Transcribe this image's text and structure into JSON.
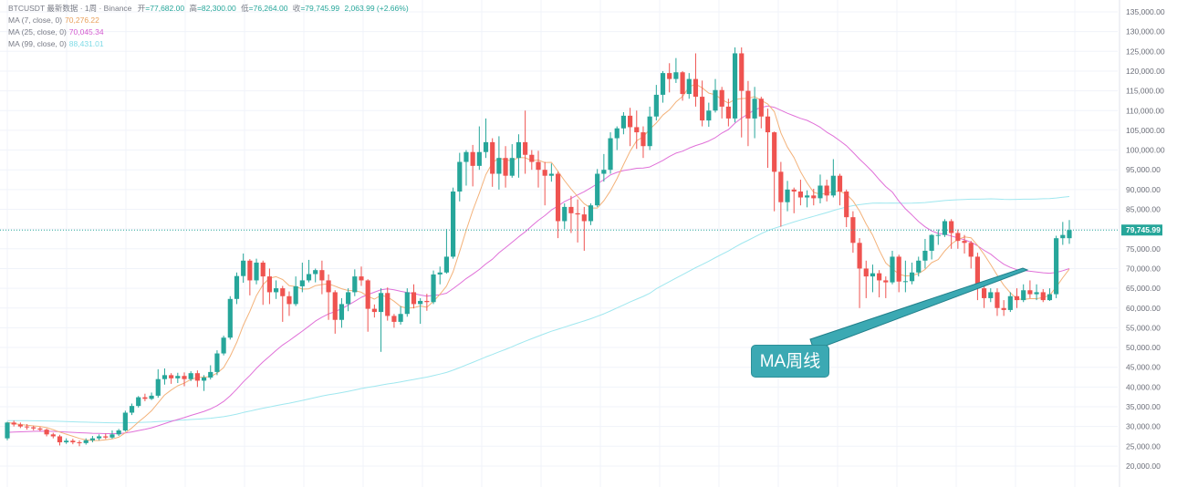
{
  "legend": {
    "header_prefix": "BTCUSDT 最新数据 · 1周 · Binance",
    "open_label": "开",
    "open_value": "=77,682.00",
    "high_label": "高",
    "high_value": "=82,300.00",
    "low_label": "低",
    "low_value": "=76,264.00",
    "close_label": "收",
    "close_value": "=79,745.99",
    "change_value": "2,063.99 (+2.66%)",
    "ma7_label": "MA (7, close, 0)",
    "ma7_value": "70,276.22",
    "ma25_label": "MA (25, close, 0)",
    "ma25_value": "70,045.34",
    "ma99_label": "MA (99, close, 0)",
    "ma99_value": "88,431.01"
  },
  "last_price_tag": "79,745.99",
  "annotation": {
    "text": "MA周线"
  },
  "colors": {
    "up": "#26a69a",
    "down": "#ef5350",
    "ma7": "#f3b27a",
    "ma25": "#e070d8",
    "ma99": "#9fe7ef",
    "callout": "#3ba9b3",
    "callout_line": "#1f7f8a"
  },
  "chart_data": {
    "type": "candlestick",
    "yticks": [
      "135,000.00",
      "130,000.00",
      "125,000.00",
      "120,000.00",
      "115,000.00",
      "110,000.00",
      "105,000.00",
      "100,000.00",
      "95,000.00",
      "90,000.00",
      "85,000.00",
      "80,000.00",
      "75,000.00",
      "70,000.00",
      "65,000.00",
      "60,000.00",
      "55,000.00",
      "50,000.00",
      "45,000.00",
      "40,000.00",
      "35,000.00",
      "30,000.00",
      "25,000.00",
      "20,000.00"
    ],
    "ylim": [
      17500,
      136000
    ],
    "last_close": 79745.99,
    "candles": [
      [
        27000,
        31000,
        26500,
        31200
      ],
      [
        31000,
        30500,
        30000,
        31500
      ],
      [
        30500,
        30000,
        29600,
        31000
      ],
      [
        30000,
        29800,
        29200,
        30600
      ],
      [
        29800,
        29500,
        29000,
        30200
      ],
      [
        29500,
        29200,
        28800,
        29900
      ],
      [
        29200,
        28000,
        27500,
        29500
      ],
      [
        28000,
        27500,
        27000,
        28400
      ],
      [
        27500,
        26000,
        25200,
        27900
      ],
      [
        26000,
        26400,
        25600,
        27000
      ],
      [
        26400,
        26000,
        25500,
        26900
      ],
      [
        26000,
        25800,
        25000,
        26500
      ],
      [
        25800,
        26500,
        25400,
        27000
      ],
      [
        26500,
        27000,
        26000,
        27600
      ],
      [
        27000,
        27500,
        26500,
        28000
      ],
      [
        27500,
        27200,
        26800,
        28200
      ],
      [
        27200,
        28000,
        26900,
        29000
      ],
      [
        28000,
        29000,
        27600,
        29400
      ],
      [
        29000,
        33500,
        28700,
        34000
      ],
      [
        33500,
        35200,
        32900,
        35800
      ],
      [
        35200,
        37400,
        34800,
        37700
      ],
      [
        37400,
        37000,
        36400,
        38300
      ],
      [
        37000,
        37800,
        36700,
        38600
      ],
      [
        37800,
        42000,
        37300,
        44500
      ],
      [
        42000,
        43000,
        40600,
        44700
      ],
      [
        43000,
        42200,
        40800,
        43500
      ],
      [
        42200,
        42800,
        41000,
        43600
      ],
      [
        42800,
        42000,
        40200,
        43700
      ],
      [
        42000,
        43500,
        41500,
        44000
      ],
      [
        43500,
        41600,
        40000,
        44200
      ],
      [
        41600,
        42400,
        39000,
        43000
      ],
      [
        42400,
        43800,
        41900,
        45500
      ],
      [
        43800,
        48500,
        43000,
        49300
      ],
      [
        48500,
        52500,
        48000,
        53000
      ],
      [
        52500,
        62300,
        52000,
        63000
      ],
      [
        62300,
        68100,
        61000,
        69000
      ],
      [
        68100,
        72000,
        66400,
        73800
      ],
      [
        72000,
        67000,
        63200,
        72400
      ],
      [
        67000,
        71500,
        66000,
        72500
      ],
      [
        71500,
        68000,
        60800,
        72000
      ],
      [
        68000,
        64000,
        61000,
        70000
      ],
      [
        64000,
        65000,
        62300,
        67000
      ],
      [
        65000,
        63000,
        56500,
        65600
      ],
      [
        63000,
        61000,
        58000,
        64200
      ],
      [
        61000,
        65500,
        60500,
        68000
      ],
      [
        65500,
        67000,
        64000,
        71500
      ],
      [
        67000,
        68600,
        66500,
        72200
      ],
      [
        68600,
        69600,
        66500,
        70000
      ],
      [
        69600,
        67000,
        63500,
        72000
      ],
      [
        67000,
        64000,
        57000,
        68500
      ],
      [
        64000,
        57000,
        53500,
        64500
      ],
      [
        57000,
        61000,
        55000,
        62500
      ],
      [
        61000,
        64000,
        59200,
        65000
      ],
      [
        64000,
        68000,
        63000,
        69800
      ],
      [
        68000,
        67000,
        65600,
        70500
      ],
      [
        67000,
        59800,
        54000,
        67300
      ],
      [
        59800,
        59000,
        57600,
        60900
      ],
      [
        59000,
        63800,
        48900,
        65000
      ],
      [
        63800,
        58000,
        56800,
        65200
      ],
      [
        58000,
        56500,
        55000,
        58500
      ],
      [
        56500,
        58500,
        55800,
        60500
      ],
      [
        58500,
        64000,
        57800,
        65000
      ],
      [
        64000,
        61000,
        59900,
        66000
      ],
      [
        61000,
        61800,
        56000,
        62500
      ],
      [
        61800,
        61500,
        59300,
        63600
      ],
      [
        61500,
        68500,
        61000,
        69500
      ],
      [
        68500,
        69000,
        66000,
        70500
      ],
      [
        69000,
        73000,
        68700,
        80000
      ],
      [
        73000,
        89500,
        72500,
        90500
      ],
      [
        89500,
        97000,
        87000,
        99300
      ],
      [
        97000,
        99500,
        91000,
        100000
      ],
      [
        99500,
        96000,
        90800,
        101300
      ],
      [
        96000,
        99500,
        95000,
        106000
      ],
      [
        99500,
        102000,
        98000,
        108000
      ],
      [
        102000,
        94000,
        90700,
        103000
      ],
      [
        94000,
        98000,
        90000,
        103500
      ],
      [
        98000,
        93500,
        90500,
        101000
      ],
      [
        93500,
        98000,
        93000,
        101500
      ],
      [
        98000,
        102000,
        93000,
        104000
      ],
      [
        102000,
        98800,
        94000,
        110000
      ],
      [
        98800,
        97000,
        95000,
        100000
      ],
      [
        97000,
        95000,
        90500,
        99800
      ],
      [
        95000,
        93500,
        86000,
        97000
      ],
      [
        93500,
        94000,
        92000,
        96600
      ],
      [
        94000,
        82000,
        77700,
        94500
      ],
      [
        82000,
        85600,
        80000,
        86500
      ],
      [
        85600,
        84000,
        79000,
        88400
      ],
      [
        84000,
        83700,
        76600,
        87500
      ],
      [
        83700,
        82000,
        74500,
        85600
      ],
      [
        82000,
        86000,
        81000,
        86500
      ],
      [
        86000,
        94000,
        85600,
        95200
      ],
      [
        94000,
        95000,
        92000,
        99000
      ],
      [
        95000,
        103000,
        94000,
        104500
      ],
      [
        103000,
        105500,
        100000,
        106000
      ],
      [
        105500,
        108700,
        104000,
        109600
      ],
      [
        108700,
        105800,
        101000,
        110700
      ],
      [
        105800,
        104500,
        100300,
        110000
      ],
      [
        104500,
        101000,
        98000,
        106000
      ],
      [
        101000,
        108500,
        100000,
        111000
      ],
      [
        108500,
        114000,
        107500,
        116500
      ],
      [
        114000,
        119500,
        112000,
        120000
      ],
      [
        119500,
        118000,
        114600,
        122000
      ],
      [
        118000,
        119700,
        117000,
        123300
      ],
      [
        119700,
        114200,
        112500,
        120000
      ],
      [
        114200,
        118000,
        113000,
        119500
      ],
      [
        118000,
        113500,
        111000,
        124500
      ],
      [
        113500,
        107500,
        106000,
        117600
      ],
      [
        107500,
        110000,
        105900,
        112000
      ],
      [
        110000,
        115200,
        109500,
        118000
      ],
      [
        115200,
        111000,
        108000,
        116000
      ],
      [
        111000,
        108000,
        106000,
        113000
      ],
      [
        108000,
        124500,
        107000,
        126000
      ],
      [
        124500,
        115000,
        103200,
        126000
      ],
      [
        115000,
        108000,
        101000,
        117500
      ],
      [
        108000,
        113000,
        103000,
        116000
      ],
      [
        113000,
        108500,
        105500,
        113500
      ],
      [
        108500,
        104500,
        95500,
        110500
      ],
      [
        104500,
        94500,
        84500,
        104700
      ],
      [
        94500,
        86800,
        80600,
        97000
      ],
      [
        86800,
        90000,
        84500,
        92200
      ],
      [
        90000,
        89500,
        84000,
        90500
      ],
      [
        89500,
        88000,
        86000,
        92500
      ],
      [
        88000,
        88500,
        85500,
        89800
      ],
      [
        88500,
        87800,
        86000,
        90200
      ],
      [
        87800,
        91000,
        86500,
        93800
      ],
      [
        91000,
        88500,
        87000,
        92500
      ],
      [
        88500,
        93500,
        88000,
        97700
      ],
      [
        93500,
        89500,
        86000,
        94000
      ],
      [
        89500,
        83000,
        80500,
        90000
      ],
      [
        83000,
        76500,
        74000,
        84500
      ],
      [
        76500,
        70000,
        60000,
        77700
      ],
      [
        70000,
        68000,
        62500,
        72000
      ],
      [
        68000,
        68800,
        64000,
        71000
      ],
      [
        68800,
        67000,
        62700,
        69600
      ],
      [
        67000,
        66500,
        62500,
        68000
      ],
      [
        66500,
        73000,
        66000,
        74500
      ],
      [
        73000,
        66700,
        64000,
        73500
      ],
      [
        66700,
        66800,
        64000,
        72000
      ],
      [
        66800,
        69000,
        66000,
        71500
      ],
      [
        69000,
        72000,
        68000,
        73000
      ],
      [
        72000,
        74500,
        70000,
        77500
      ],
      [
        74500,
        78500,
        72300,
        78700
      ],
      [
        78500,
        78500,
        76000,
        79900
      ],
      [
        78500,
        82000,
        78000,
        82500
      ],
      [
        82000,
        79000,
        75000,
        82500
      ],
      [
        79000,
        77000,
        75000,
        79900
      ],
      [
        77000,
        76500,
        73800,
        78500
      ],
      [
        76500,
        73000,
        70000,
        77000
      ],
      [
        73000,
        65000,
        62000,
        74000
      ],
      [
        65000,
        62500,
        60000,
        66600
      ],
      [
        62500,
        64000,
        61500,
        65000
      ],
      [
        64000,
        60000,
        58000,
        65000
      ],
      [
        60000,
        59500,
        58000,
        62000
      ],
      [
        59500,
        63000,
        59000,
        64000
      ],
      [
        63000,
        62000,
        60000,
        65000
      ],
      [
        62000,
        64500,
        61500,
        66000
      ],
      [
        64500,
        63500,
        62500,
        67000
      ],
      [
        63500,
        64000,
        62000,
        66000
      ],
      [
        64000,
        62000,
        61500,
        64800
      ],
      [
        62000,
        63500,
        61800,
        65000
      ],
      [
        63500,
        77680,
        62500,
        78300
      ],
      [
        77680,
        78500,
        76000,
        81800
      ],
      [
        77682,
        79745.99,
        76264,
        82300
      ]
    ]
  }
}
